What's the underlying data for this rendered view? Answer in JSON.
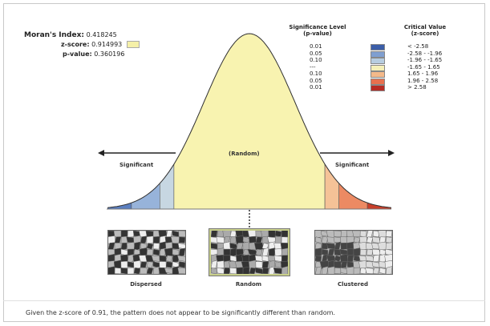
{
  "stats": {
    "morans_label": "Moran's Index:",
    "morans_value": "0.418245",
    "z_label": "z-score:",
    "z_value": "0.914993",
    "p_label": "p-value:",
    "p_value": "0.360196"
  },
  "legend": {
    "sig_header_1": "Significance Level",
    "sig_header_2": "(p-value)",
    "crit_header_1": "Critical Value",
    "crit_header_2": "(z-score)",
    "rows": [
      {
        "p": "0.01",
        "z": "< -2.58",
        "color": "#3b5ea8"
      },
      {
        "p": "0.05",
        "z": "-2.58 - -1.96",
        "color": "#7f9fd0"
      },
      {
        "p": "0.10",
        "z": "-1.96 - -1.65",
        "color": "#b7cde0"
      },
      {
        "p": "---",
        "z": "-1.65 - 1.65",
        "color": "#f5f0b8"
      },
      {
        "p": "0.10",
        "z": "1.65 - 1.96",
        "color": "#f4b98a"
      },
      {
        "p": "0.05",
        "z": "1.96 - 2.58",
        "color": "#e8704e"
      },
      {
        "p": "0.01",
        "z": "> 2.58",
        "color": "#b82b24"
      }
    ]
  },
  "curve": {
    "random_label": "(Random)",
    "left_label": "Significant",
    "right_label": "Significant",
    "z_score": 0.91,
    "colors": {
      "fill_center": "#f8f3b0",
      "left_outer": "#5b7fc0",
      "left_mid": "#97b3da",
      "left_inner": "#c7d7e2",
      "right_inner": "#f5c297",
      "right_mid": "#ec8a63",
      "right_outer": "#c83f2a"
    }
  },
  "thumbs": {
    "dispersed": "Dispersed",
    "random": "Random",
    "clustered": "Clustered"
  },
  "caption": "Given the z-score of 0.91, the pattern does not appear to be significantly different than random."
}
